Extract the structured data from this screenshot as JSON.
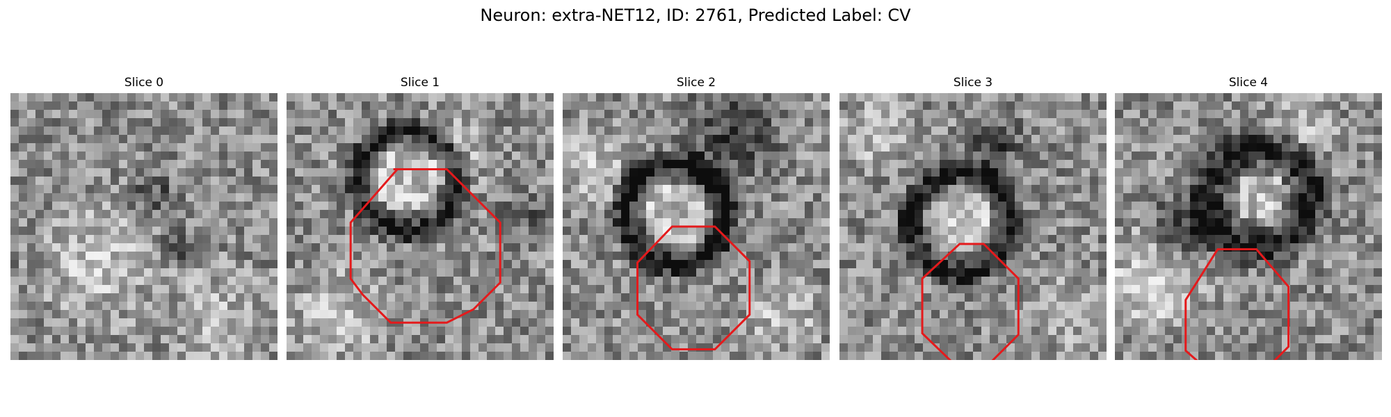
{
  "figure": {
    "title": "Neuron: extra-NET12, ID: 2761, Predicted Label: CV"
  },
  "panels": [
    {
      "title": "Slice 0",
      "overlay": "none"
    },
    {
      "title": "Slice 1",
      "overlay": "octagon"
    },
    {
      "title": "Slice 2",
      "overlay": "octagon"
    },
    {
      "title": "Slice 3",
      "overlay": "octagon"
    },
    {
      "title": "Slice 4",
      "overlay": "octagon"
    }
  ],
  "colors": {
    "contour": "#e41a1c",
    "colormap": "grayscale"
  }
}
